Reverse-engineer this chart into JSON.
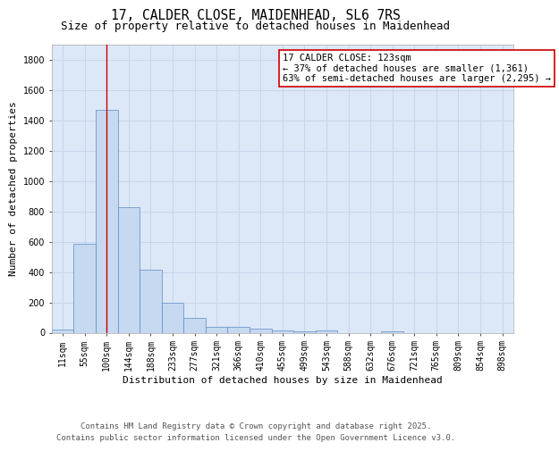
{
  "title1": "17, CALDER CLOSE, MAIDENHEAD, SL6 7RS",
  "title2": "Size of property relative to detached houses in Maidenhead",
  "xlabel": "Distribution of detached houses by size in Maidenhead",
  "ylabel": "Number of detached properties",
  "categories": [
    "11sqm",
    "55sqm",
    "100sqm",
    "144sqm",
    "188sqm",
    "233sqm",
    "277sqm",
    "321sqm",
    "366sqm",
    "410sqm",
    "455sqm",
    "499sqm",
    "543sqm",
    "588sqm",
    "632sqm",
    "676sqm",
    "721sqm",
    "765sqm",
    "809sqm",
    "854sqm",
    "898sqm"
  ],
  "values": [
    20,
    585,
    1470,
    830,
    415,
    200,
    100,
    40,
    38,
    25,
    15,
    10,
    15,
    0,
    0,
    10,
    0,
    0,
    0,
    0,
    0
  ],
  "bar_color": "#c6d9f0",
  "bar_edge_color": "#5b8cc8",
  "vline_x": 2,
  "vline_color": "#cc0000",
  "annotation_text": "17 CALDER CLOSE: 123sqm\n← 37% of detached houses are smaller (1,361)\n63% of semi-detached houses are larger (2,295) →",
  "annotation_box_color": "#ffffff",
  "annotation_box_edgecolor": "#cc0000",
  "ylim": [
    0,
    1900
  ],
  "yticks": [
    0,
    200,
    400,
    600,
    800,
    1000,
    1200,
    1400,
    1600,
    1800
  ],
  "grid_color": "#c8d4e8",
  "background_color": "#dce8f8",
  "footer": "Contains HM Land Registry data © Crown copyright and database right 2025.\nContains public sector information licensed under the Open Government Licence v3.0.",
  "title_fontsize": 10.5,
  "subtitle_fontsize": 9,
  "axis_label_fontsize": 8,
  "tick_fontsize": 7,
  "annotation_fontsize": 7.5,
  "footer_fontsize": 6.5
}
